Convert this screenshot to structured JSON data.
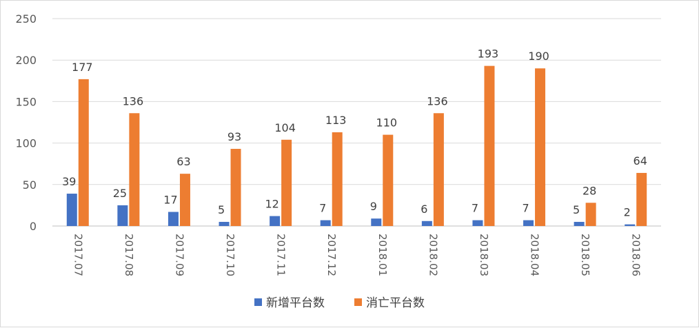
{
  "chart_data": {
    "type": "bar",
    "categories": [
      "2017.07",
      "2017.08",
      "2017.09",
      "2017.10",
      "2017.11",
      "2017.12",
      "2018.01",
      "2018.02",
      "2018.03",
      "2018.04",
      "2018.05",
      "2018.06"
    ],
    "series": [
      {
        "name": "新增平台数",
        "color": "#4472c4",
        "values": [
          39,
          25,
          17,
          5,
          12,
          7,
          9,
          6,
          7,
          7,
          5,
          2
        ]
      },
      {
        "name": "消亡平台数",
        "color": "#ed7d31",
        "values": [
          177,
          136,
          63,
          93,
          104,
          113,
          110,
          136,
          193,
          190,
          28,
          64
        ]
      }
    ],
    "y_ticks": [
      "0",
      "50",
      "100",
      "150",
      "200",
      "250"
    ],
    "ylim": [
      0,
      250
    ],
    "grid": true,
    "legend_position": "bottom",
    "title": "",
    "xlabel": "",
    "ylabel": ""
  }
}
